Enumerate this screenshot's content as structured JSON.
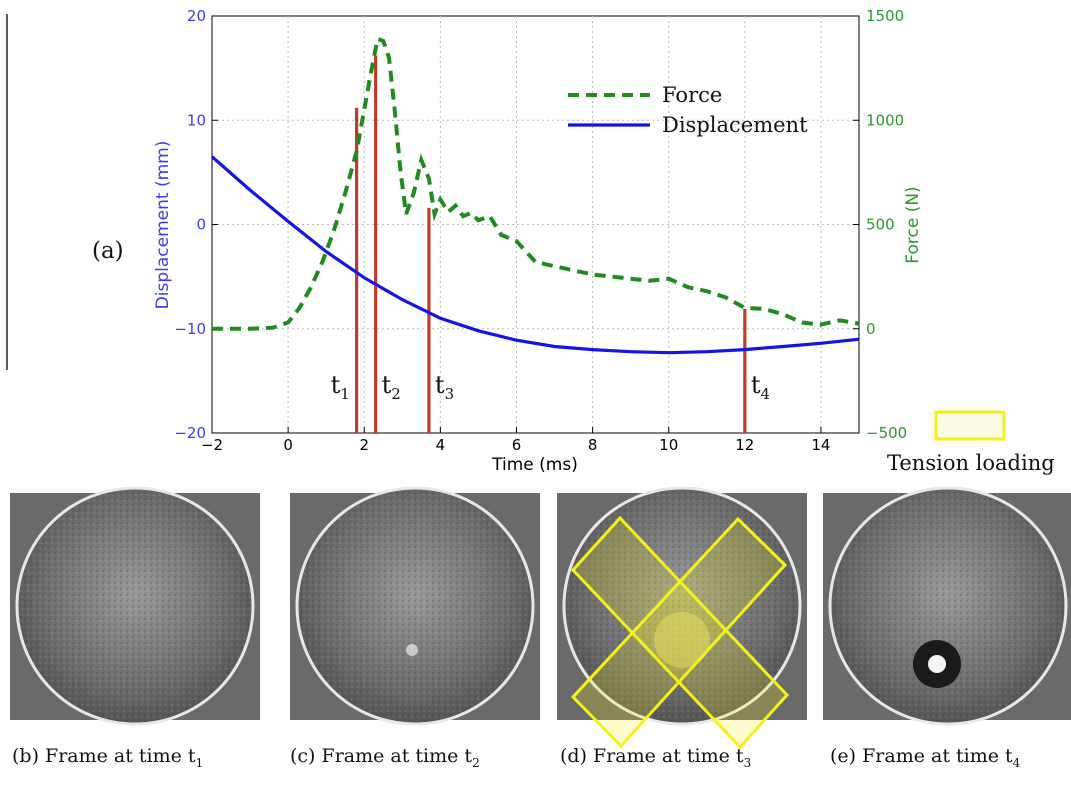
{
  "panel_label": "(a)",
  "legend_tension": "Tension loading",
  "colors": {
    "force": "#1e8c1e",
    "displacement": "#1414e6",
    "markers": "#c0392b",
    "tension": "#f5f21a",
    "left_axis": "#3c3cf0",
    "right_axis": "#2a9a2a"
  },
  "chart_data": {
    "type": "line",
    "xlabel": "Time (ms)",
    "ylabel": "Displacement (mm)",
    "ylabel_right": "Force (N)",
    "xlim": [
      -2,
      15
    ],
    "ylim": [
      -20,
      20
    ],
    "ylim_right": [
      -500,
      1500
    ],
    "xticks": [
      -2,
      0,
      2,
      4,
      6,
      8,
      10,
      12,
      14
    ],
    "yticks": [
      -20,
      -10,
      0,
      10,
      20
    ],
    "yticks_right": [
      -500,
      0,
      500,
      1000,
      1500
    ],
    "grid": true,
    "legend_position": "top-right",
    "series": [
      {
        "name": "Force",
        "axis": "right",
        "style": "dashed",
        "x": [
          -2,
          -1,
          -0.4,
          0,
          0.3,
          0.6,
          0.9,
          1.2,
          1.5,
          1.8,
          2.0,
          2.2,
          2.35,
          2.5,
          2.65,
          2.8,
          2.95,
          3.1,
          3.3,
          3.5,
          3.7,
          3.85,
          4.0,
          4.2,
          4.4,
          4.6,
          4.8,
          5.0,
          5.3,
          5.6,
          6.0,
          6.5,
          7.0,
          7.5,
          8.0,
          8.5,
          9.0,
          9.5,
          10.0,
          10.5,
          11.0,
          11.5,
          12.0,
          12.5,
          13.0,
          13.5,
          14.0,
          14.5,
          15.0
        ],
        "values": [
          0,
          0,
          5,
          30,
          100,
          200,
          320,
          470,
          650,
          850,
          1050,
          1250,
          1390,
          1380,
          1300,
          1050,
          760,
          550,
          650,
          810,
          720,
          550,
          620,
          560,
          590,
          540,
          555,
          520,
          540,
          450,
          420,
          320,
          300,
          280,
          260,
          250,
          240,
          230,
          240,
          200,
          180,
          150,
          100,
          95,
          70,
          30,
          20,
          40,
          25
        ]
      },
      {
        "name": "Displacement",
        "axis": "left",
        "style": "solid",
        "x": [
          -2,
          -1,
          0,
          1,
          2,
          3,
          4,
          5,
          6,
          7,
          8,
          9,
          10,
          11,
          12,
          13,
          14,
          15
        ],
        "values": [
          6.5,
          3.3,
          0.3,
          -2.6,
          -5.1,
          -7.2,
          -9.0,
          -10.2,
          -11.1,
          -11.7,
          -12.0,
          -12.2,
          -12.3,
          -12.2,
          -12.0,
          -11.7,
          -11.4,
          -11.0
        ]
      }
    ],
    "markers": [
      {
        "label": "t",
        "sub": "1",
        "x": 1.8,
        "force": 1060
      },
      {
        "label": "t",
        "sub": "2",
        "x": 2.3,
        "force": 1310
      },
      {
        "label": "t",
        "sub": "3",
        "x": 3.7,
        "force": 580
      },
      {
        "label": "t",
        "sub": "4",
        "x": 12.0,
        "force": 95
      }
    ]
  },
  "panels": [
    {
      "caption": "(b) Frame at time t",
      "sub": "1"
    },
    {
      "caption": "(c) Frame at time t",
      "sub": "2"
    },
    {
      "caption": "(d) Frame at time t",
      "sub": "3"
    },
    {
      "caption": "(e) Frame at time t",
      "sub": "4"
    }
  ]
}
